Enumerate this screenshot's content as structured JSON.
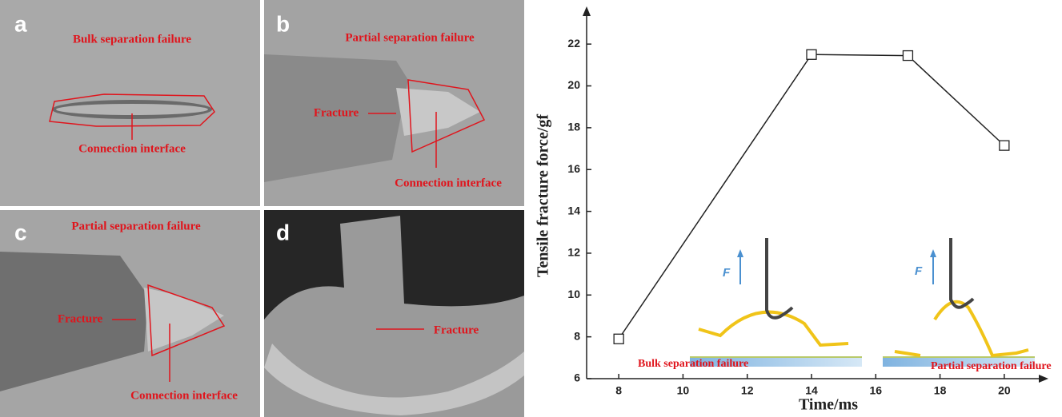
{
  "panels": [
    {
      "label": "a",
      "texts": [
        "Bulk separation failure",
        "Connection interface"
      ]
    },
    {
      "label": "b",
      "texts": [
        "Partial separation failure",
        "Fracture",
        "Connection interface"
      ]
    },
    {
      "label": "c",
      "texts": [
        "Partial separation failure",
        "Fracture",
        "Connection interface"
      ]
    },
    {
      "label": "d",
      "texts": [
        "Fracture"
      ]
    }
  ],
  "chart_data": {
    "type": "line",
    "xlabel": "Time/ms",
    "ylabel": "Tensile fracture force/gf",
    "x": [
      8,
      14,
      17,
      20
    ],
    "values": [
      7.9,
      21.5,
      21.45,
      17.15
    ],
    "color": "#222222",
    "xlim": [
      7,
      21
    ],
    "ylim": [
      6,
      23
    ],
    "xticks": [
      8,
      10,
      12,
      14,
      16,
      18,
      20
    ],
    "yticks": [
      6,
      8,
      10,
      12,
      14,
      16,
      18,
      20,
      22
    ],
    "annotations": [
      "F",
      "F",
      "Bulk separation failure",
      "Partial separation failure"
    ]
  }
}
